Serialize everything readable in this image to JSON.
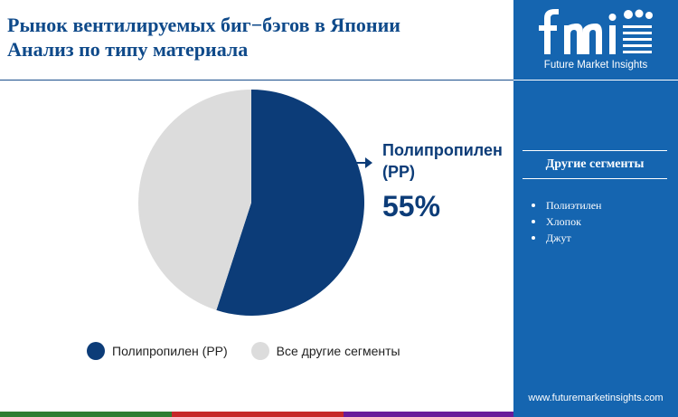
{
  "title": {
    "line1": "Рынок вентилируемых биг−бэгов в Японии",
    "line2": "Анализ по типу материала"
  },
  "chart_data": {
    "type": "pie",
    "slices": [
      {
        "label": "Полипропилен (PP)",
        "value": 55,
        "color": "#0c3c78"
      },
      {
        "label": "Все другие сегменты",
        "value": 45,
        "color": "#dcdcdc"
      }
    ],
    "callout": {
      "label": "Полипропилен (PP)",
      "value_text": "55%"
    },
    "legend": [
      {
        "label": "Полипропилен (PP)",
        "color": "#0c3c78"
      },
      {
        "label": "Все другие сегменты",
        "color": "#dcdcdc"
      }
    ],
    "legend_position": "bottom"
  },
  "sidebar": {
    "logo_text": "fmi",
    "logo_subtitle": "Future Market Insights",
    "segments_title": "Другие сегменты",
    "segments": [
      "Полиэтилен",
      "Хлопок",
      "Джут"
    ],
    "website": "www.futuremarketinsights.com",
    "background_color": "#1565b0"
  },
  "bottom_bar_colors": [
    "#2e7d32",
    "#c62828",
    "#6a1b9a",
    "#1565b0"
  ]
}
